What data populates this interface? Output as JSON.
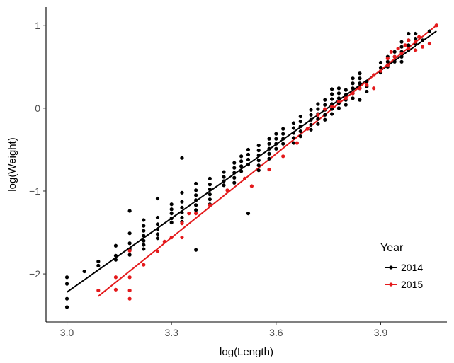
{
  "chart_data": {
    "type": "scatter",
    "xlabel": "log(Length)",
    "ylabel": "log(Weight)",
    "xlim": [
      2.94,
      4.09
    ],
    "ylim": [
      -2.58,
      1.22
    ],
    "x_ticks": [
      3.0,
      3.3,
      3.6,
      3.9
    ],
    "x_tick_labels": [
      "3.0",
      "3.3",
      "3.6",
      "3.9"
    ],
    "y_ticks": [
      -2,
      -1,
      0,
      1
    ],
    "y_tick_labels": [
      "−2",
      "−1",
      "0",
      "1"
    ],
    "grid": false,
    "legend": {
      "title": "Year",
      "position": "right"
    },
    "series": [
      {
        "name": "2014",
        "color": "#000000",
        "fit_line": {
          "x": [
            3.0,
            4.06
          ],
          "y": [
            -2.22,
            0.93
          ]
        },
        "points": [
          [
            3.0,
            -2.04
          ],
          [
            3.0,
            -2.12
          ],
          [
            3.0,
            -2.3
          ],
          [
            3.0,
            -2.4
          ],
          [
            3.05,
            -1.97
          ],
          [
            3.09,
            -1.85
          ],
          [
            3.09,
            -1.9
          ],
          [
            3.14,
            -1.66
          ],
          [
            3.14,
            -1.78
          ],
          [
            3.14,
            -1.83
          ],
          [
            3.18,
            -1.24
          ],
          [
            3.18,
            -1.51
          ],
          [
            3.18,
            -1.63
          ],
          [
            3.18,
            -1.7
          ],
          [
            3.18,
            -1.77
          ],
          [
            3.22,
            -1.35
          ],
          [
            3.22,
            -1.42
          ],
          [
            3.22,
            -1.48
          ],
          [
            3.22,
            -1.54
          ],
          [
            3.22,
            -1.6
          ],
          [
            3.22,
            -1.65
          ],
          [
            3.22,
            -1.7
          ],
          [
            3.26,
            -1.09
          ],
          [
            3.26,
            -1.32
          ],
          [
            3.26,
            -1.4
          ],
          [
            3.26,
            -1.46
          ],
          [
            3.26,
            -1.52
          ],
          [
            3.26,
            -1.57
          ],
          [
            3.3,
            -1.16
          ],
          [
            3.3,
            -1.22
          ],
          [
            3.3,
            -1.27
          ],
          [
            3.3,
            -1.33
          ],
          [
            3.3,
            -1.38
          ],
          [
            3.33,
            -0.6
          ],
          [
            3.33,
            -1.02
          ],
          [
            3.33,
            -1.13
          ],
          [
            3.33,
            -1.2
          ],
          [
            3.33,
            -1.26
          ],
          [
            3.33,
            -1.32
          ],
          [
            3.33,
            -1.37
          ],
          [
            3.37,
            -0.91
          ],
          [
            3.37,
            -0.99
          ],
          [
            3.37,
            -1.05
          ],
          [
            3.37,
            -1.11
          ],
          [
            3.37,
            -1.17
          ],
          [
            3.37,
            -1.23
          ],
          [
            3.37,
            -1.71
          ],
          [
            3.41,
            -0.85
          ],
          [
            3.41,
            -0.92
          ],
          [
            3.41,
            -0.98
          ],
          [
            3.41,
            -1.04
          ],
          [
            3.41,
            -1.1
          ],
          [
            3.41,
            -1.16
          ],
          [
            3.45,
            -0.77
          ],
          [
            3.45,
            -0.83
          ],
          [
            3.45,
            -0.88
          ],
          [
            3.45,
            -0.93
          ],
          [
            3.48,
            -0.66
          ],
          [
            3.48,
            -0.72
          ],
          [
            3.48,
            -0.78
          ],
          [
            3.48,
            -0.84
          ],
          [
            3.48,
            -0.9
          ],
          [
            3.5,
            -0.58
          ],
          [
            3.5,
            -0.64
          ],
          [
            3.5,
            -0.7
          ],
          [
            3.5,
            -0.76
          ],
          [
            3.52,
            -0.5
          ],
          [
            3.52,
            -0.56
          ],
          [
            3.52,
            -0.62
          ],
          [
            3.52,
            -0.68
          ],
          [
            3.52,
            -1.27
          ],
          [
            3.55,
            -0.45
          ],
          [
            3.55,
            -0.51
          ],
          [
            3.55,
            -0.57
          ],
          [
            3.55,
            -0.63
          ],
          [
            3.55,
            -0.69
          ],
          [
            3.55,
            -0.75
          ],
          [
            3.58,
            -0.37
          ],
          [
            3.58,
            -0.43
          ],
          [
            3.58,
            -0.49
          ],
          [
            3.58,
            -0.55
          ],
          [
            3.58,
            -0.61
          ],
          [
            3.6,
            -0.31
          ],
          [
            3.6,
            -0.37
          ],
          [
            3.6,
            -0.43
          ],
          [
            3.6,
            -0.49
          ],
          [
            3.62,
            -0.25
          ],
          [
            3.62,
            -0.31
          ],
          [
            3.62,
            -0.37
          ],
          [
            3.62,
            -0.43
          ],
          [
            3.65,
            -0.18
          ],
          [
            3.65,
            -0.24
          ],
          [
            3.65,
            -0.3
          ],
          [
            3.65,
            -0.36
          ],
          [
            3.65,
            -0.42
          ],
          [
            3.67,
            -0.1
          ],
          [
            3.67,
            -0.16
          ],
          [
            3.67,
            -0.22
          ],
          [
            3.67,
            -0.28
          ],
          [
            3.67,
            -0.34
          ],
          [
            3.7,
            -0.02
          ],
          [
            3.7,
            -0.08
          ],
          [
            3.7,
            -0.14
          ],
          [
            3.7,
            -0.2
          ],
          [
            3.7,
            -0.26
          ],
          [
            3.72,
            0.05
          ],
          [
            3.72,
            -0.01
          ],
          [
            3.72,
            -0.07
          ],
          [
            3.72,
            -0.13
          ],
          [
            3.72,
            -0.19
          ],
          [
            3.74,
            0.1
          ],
          [
            3.74,
            0.04
          ],
          [
            3.74,
            -0.02
          ],
          [
            3.74,
            -0.08
          ],
          [
            3.74,
            -0.14
          ],
          [
            3.76,
            0.23
          ],
          [
            3.76,
            0.17
          ],
          [
            3.76,
            0.11
          ],
          [
            3.76,
            0.05
          ],
          [
            3.76,
            -0.01
          ],
          [
            3.76,
            -0.07
          ],
          [
            3.78,
            0.24
          ],
          [
            3.78,
            0.18
          ],
          [
            3.78,
            0.12
          ],
          [
            3.78,
            0.06
          ],
          [
            3.78,
            0.0
          ],
          [
            3.8,
            0.22
          ],
          [
            3.8,
            0.16
          ],
          [
            3.8,
            0.1
          ],
          [
            3.8,
            0.04
          ],
          [
            3.82,
            0.36
          ],
          [
            3.82,
            0.3
          ],
          [
            3.82,
            0.24
          ],
          [
            3.82,
            0.18
          ],
          [
            3.82,
            0.12
          ],
          [
            3.84,
            0.42
          ],
          [
            3.84,
            0.36
          ],
          [
            3.84,
            0.3
          ],
          [
            3.84,
            0.24
          ],
          [
            3.84,
            0.1
          ],
          [
            3.86,
            0.32
          ],
          [
            3.86,
            0.26
          ],
          [
            3.86,
            0.2
          ],
          [
            3.9,
            0.55
          ],
          [
            3.9,
            0.49
          ],
          [
            3.9,
            0.43
          ],
          [
            3.92,
            0.62
          ],
          [
            3.92,
            0.56
          ],
          [
            3.92,
            0.5
          ],
          [
            3.94,
            0.68
          ],
          [
            3.94,
            0.62
          ],
          [
            3.94,
            0.56
          ],
          [
            3.96,
            0.8
          ],
          [
            3.96,
            0.74
          ],
          [
            3.96,
            0.68
          ],
          [
            3.96,
            0.62
          ],
          [
            3.96,
            0.56
          ],
          [
            3.98,
            0.9
          ],
          [
            3.98,
            0.82
          ],
          [
            3.98,
            0.76
          ],
          [
            3.98,
            0.7
          ],
          [
            4.0,
            0.9
          ],
          [
            4.0,
            0.84
          ],
          [
            4.0,
            0.78
          ],
          [
            4.02,
            0.82
          ],
          [
            4.04,
            0.93
          ]
        ]
      },
      {
        "name": "2015",
        "color": "#e41a1c",
        "fit_line": {
          "x": [
            3.09,
            4.06
          ],
          "y": [
            -2.27,
            1.0
          ]
        },
        "points": [
          [
            3.09,
            -2.2
          ],
          [
            3.14,
            -2.04
          ],
          [
            3.14,
            -2.19
          ],
          [
            3.18,
            -1.72
          ],
          [
            3.18,
            -2.04
          ],
          [
            3.18,
            -2.2
          ],
          [
            3.18,
            -2.3
          ],
          [
            3.22,
            -1.89
          ],
          [
            3.26,
            -1.73
          ],
          [
            3.28,
            -1.61
          ],
          [
            3.3,
            -1.56
          ],
          [
            3.33,
            -1.39
          ],
          [
            3.33,
            -1.56
          ],
          [
            3.35,
            -1.27
          ],
          [
            3.37,
            -1.27
          ],
          [
            3.41,
            -1.17
          ],
          [
            3.46,
            -0.99
          ],
          [
            3.51,
            -0.85
          ],
          [
            3.53,
            -0.94
          ],
          [
            3.58,
            -0.74
          ],
          [
            3.62,
            -0.58
          ],
          [
            3.66,
            -0.42
          ],
          [
            3.69,
            -0.25
          ],
          [
            3.72,
            -0.08
          ],
          [
            3.74,
            -0.01
          ],
          [
            3.76,
            0.02
          ],
          [
            3.78,
            0.08
          ],
          [
            3.8,
            0.12
          ],
          [
            3.82,
            0.18
          ],
          [
            3.84,
            0.24
          ],
          [
            3.86,
            0.28
          ],
          [
            3.88,
            0.24
          ],
          [
            3.88,
            0.4
          ],
          [
            3.9,
            0.45
          ],
          [
            3.92,
            0.52
          ],
          [
            3.92,
            0.6
          ],
          [
            3.93,
            0.68
          ],
          [
            3.94,
            0.62
          ],
          [
            3.95,
            0.72
          ],
          [
            3.96,
            0.66
          ],
          [
            3.97,
            0.76
          ],
          [
            3.98,
            0.72
          ],
          [
            3.98,
            0.82
          ],
          [
            4.0,
            0.7
          ],
          [
            4.0,
            0.8
          ],
          [
            4.01,
            0.86
          ],
          [
            4.02,
            0.74
          ],
          [
            4.04,
            0.78
          ],
          [
            4.06,
            1.0
          ]
        ]
      }
    ]
  }
}
